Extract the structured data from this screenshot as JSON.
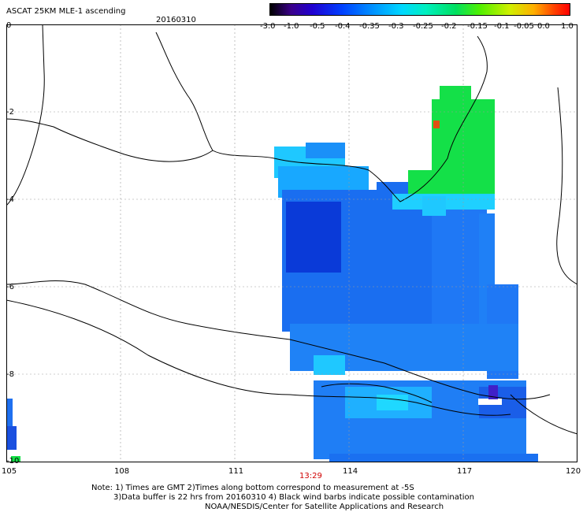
{
  "header": {
    "title": "ASCAT 25KM MLE-1 ascending",
    "date": "20160310"
  },
  "colorbar": {
    "ticks": [
      "-3.0",
      "-1.0",
      "-0.5",
      "-0.4",
      "-0.35",
      "-0.3",
      "-0.25",
      "-0.2",
      "-0.15",
      "-0.1",
      "-0.05",
      "0.0",
      "1.0"
    ]
  },
  "axes": {
    "lon_ticks": [
      "105",
      "108",
      "111",
      "114",
      "117",
      "120"
    ],
    "lat_ticks": [
      "0",
      "-2",
      "-4",
      "-6",
      "-8",
      "-10"
    ]
  },
  "time_label": "13:29",
  "notes": {
    "line1": "Note: 1) Times are GMT 2)Times along bottom correspond to measurement at -5S",
    "line2": "3)Data buffer is 22 hrs from 20160310 4) Black wind barbs indicate possible contamination",
    "line3": "NOAA/NESDIS/Center for Satellite Applications and Research"
  },
  "colors": {
    "coast": "#000000",
    "swath_deep": "#0a3ad8",
    "swath_mid": "#1a6ef0",
    "swath_light": "#1fc8ff",
    "swath_green": "#14e048",
    "hot": "#e05010"
  }
}
